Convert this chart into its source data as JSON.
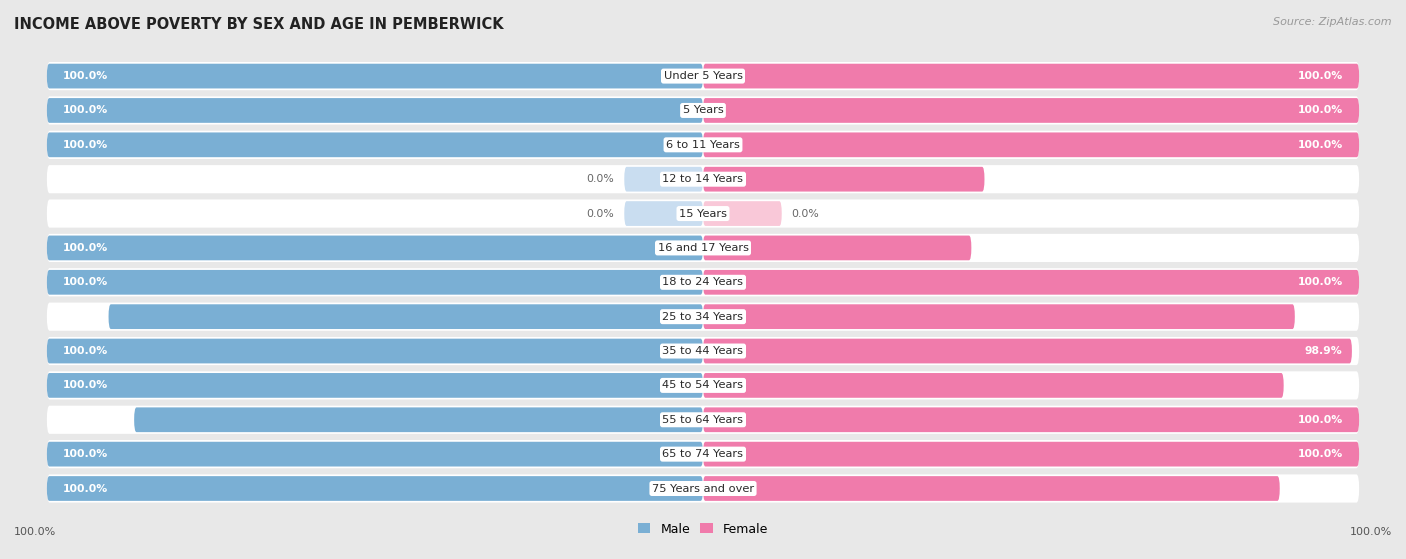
{
  "title": "INCOME ABOVE POVERTY BY SEX AND AGE IN PEMBERWICK",
  "source": "Source: ZipAtlas.com",
  "categories": [
    "Under 5 Years",
    "5 Years",
    "6 to 11 Years",
    "12 to 14 Years",
    "15 Years",
    "16 and 17 Years",
    "18 to 24 Years",
    "25 to 34 Years",
    "35 to 44 Years",
    "45 to 54 Years",
    "55 to 64 Years",
    "65 to 74 Years",
    "75 Years and over"
  ],
  "male_values": [
    100.0,
    100.0,
    100.0,
    0.0,
    0.0,
    100.0,
    100.0,
    90.6,
    100.0,
    100.0,
    86.7,
    100.0,
    100.0
  ],
  "female_values": [
    100.0,
    100.0,
    100.0,
    42.9,
    0.0,
    40.9,
    100.0,
    90.2,
    98.9,
    88.5,
    100.0,
    100.0,
    87.9
  ],
  "male_color": "#7aafd4",
  "female_color": "#f07bab",
  "male_color_light": "#c9ddf0",
  "female_color_light": "#f9c8d8",
  "bg_color": "#e8e8e8",
  "row_bg": "#ffffff",
  "max_value": 100.0,
  "legend_male": "Male",
  "legend_female": "Female"
}
